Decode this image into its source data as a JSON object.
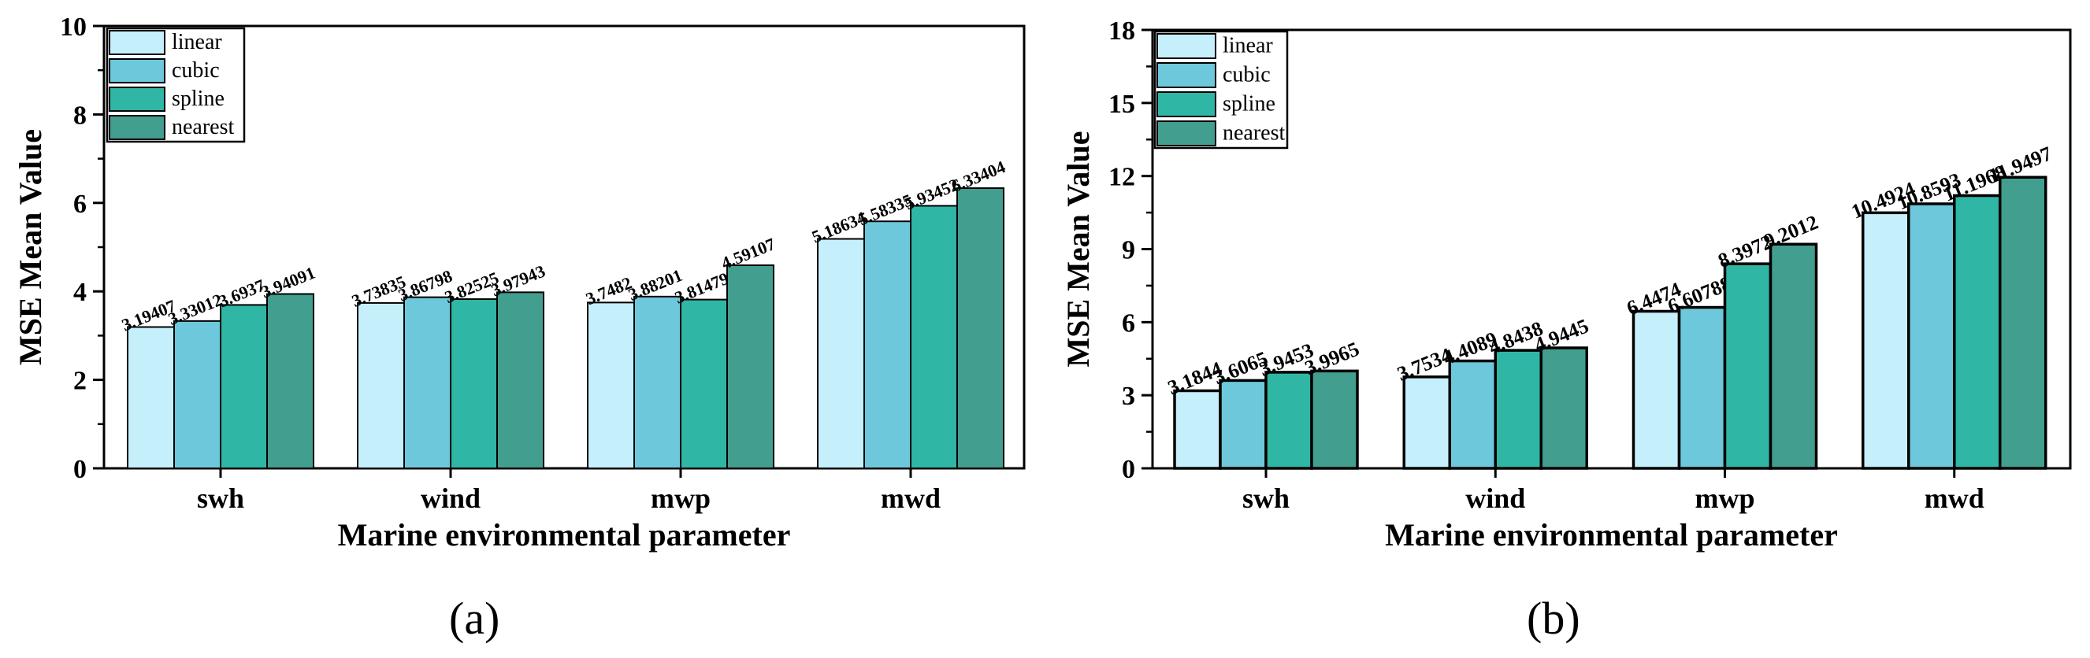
{
  "chart_data": [
    {
      "type": "bar",
      "panel_label": "(a)",
      "categories": [
        "swh",
        "wind",
        "mwp",
        "mwd"
      ],
      "series": [
        {
          "name": "linear",
          "color": "#c6effc",
          "values": [
            3.19407,
            3.73835,
            3.7482,
            5.18634
          ],
          "labels": [
            "3.19407",
            "3.73835",
            "3.7482",
            "5.18634"
          ]
        },
        {
          "name": "cubic",
          "color": "#6dc8db",
          "values": [
            3.33012,
            3.86798,
            3.88201,
            5.58335
          ],
          "labels": [
            "3.33012",
            "3.86798",
            "3.88201",
            "5.58335"
          ]
        },
        {
          "name": "spline",
          "color": "#2fb6a5",
          "values": [
            3.6937,
            3.82525,
            3.81479,
            5.93452
          ],
          "labels": [
            "3.6937",
            "3.82525",
            "3.81479",
            "5.93452"
          ]
        },
        {
          "name": "nearest",
          "color": "#429e8e",
          "values": [
            3.94091,
            3.97943,
            4.59107,
            6.33404
          ],
          "labels": [
            "3.94091",
            "3.97943",
            "4.59107",
            "6.33404"
          ]
        }
      ],
      "xlabel": "Marine environmental parameter",
      "ylabel": "MSE Mean Value",
      "ylim": [
        0,
        10
      ],
      "yticks": [
        0,
        2,
        4,
        6,
        8,
        10
      ],
      "minor_step": 1,
      "legend": "top-left"
    },
    {
      "type": "bar",
      "panel_label": "(b)",
      "categories": [
        "swh",
        "wind",
        "mwp",
        "mwd"
      ],
      "series": [
        {
          "name": "linear",
          "color": "#c6effc",
          "values": [
            3.1844,
            3.7534,
            6.4474,
            10.4924
          ],
          "labels": [
            "3.1844",
            "3.7534",
            "6.4474",
            "10.4924"
          ]
        },
        {
          "name": "cubic",
          "color": "#6dc8db",
          "values": [
            3.6065,
            4.4089,
            6.60788,
            10.8593
          ],
          "labels": [
            "3.6065",
            "4.4089",
            "6.60788",
            "10.8593"
          ]
        },
        {
          "name": "spline",
          "color": "#2fb6a5",
          "values": [
            3.9453,
            4.8438,
            8.3972,
            11.1968
          ],
          "labels": [
            "3.9453",
            "4.8438",
            "8.3972",
            "11.1968"
          ]
        },
        {
          "name": "nearest",
          "color": "#429e8e",
          "values": [
            3.9965,
            4.9445,
            9.2012,
            11.9497
          ],
          "labels": [
            "3.9965",
            "4.9445",
            "9.2012",
            "11.9497"
          ]
        }
      ],
      "xlabel": "Marine environmental parameter",
      "ylabel": "MSE Mean Value",
      "ylim": [
        0,
        18
      ],
      "yticks": [
        0,
        3,
        6,
        9,
        12,
        15,
        18
      ],
      "minor_step": 1.5,
      "legend": "top-left"
    }
  ]
}
